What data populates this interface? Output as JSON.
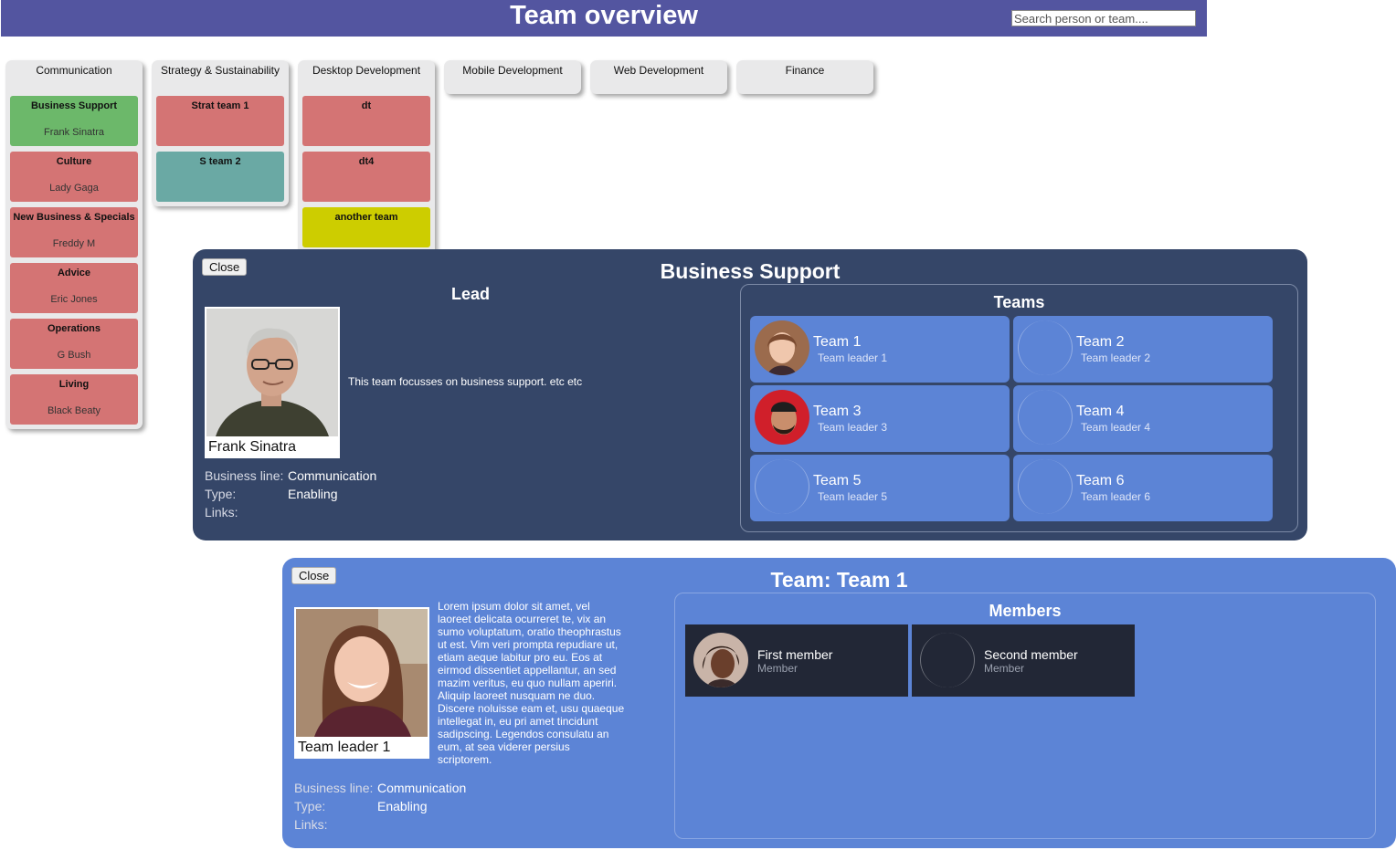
{
  "header": {
    "title": "Team overview",
    "search_placeholder": "Search person or team...."
  },
  "business_lines": [
    {
      "name": "Communication",
      "teams": [
        {
          "name": "Business Support",
          "lead": "Frank Sinatra",
          "color": "#6cb86a"
        },
        {
          "name": "Culture",
          "lead": "Lady Gaga",
          "color": "#d47474"
        },
        {
          "name": "New Business & Specials",
          "lead": "Freddy M",
          "color": "#d47474"
        },
        {
          "name": "Advice",
          "lead": "Eric Jones",
          "color": "#d47474"
        },
        {
          "name": "Operations",
          "lead": "G Bush",
          "color": "#d47474"
        },
        {
          "name": "Living",
          "lead": "Black Beaty",
          "color": "#d47474"
        }
      ]
    },
    {
      "name": "Strategy & Sustainability",
      "teams": [
        {
          "name": "Strat team 1",
          "lead": "",
          "color": "#d47474"
        },
        {
          "name": "S team 2",
          "lead": "",
          "color": "#6aa9a4"
        }
      ]
    },
    {
      "name": "Desktop Development",
      "teams": [
        {
          "name": "dt",
          "lead": "",
          "color": "#d47474"
        },
        {
          "name": "dt4",
          "lead": "",
          "color": "#d47474"
        },
        {
          "name": "another team",
          "lead": "",
          "color": "#cdcd00"
        }
      ]
    },
    {
      "name": "Mobile Development",
      "teams": []
    },
    {
      "name": "Web Development",
      "teams": []
    },
    {
      "name": "Finance",
      "teams": []
    }
  ],
  "business_support_modal": {
    "close_label": "Close",
    "title": "Business Support",
    "lead_heading": "Lead",
    "lead_name": "Frank Sinatra",
    "description": "This team focusses on business support. etc etc",
    "info": {
      "business_line_label": "Business line:",
      "business_line_value": "Communication",
      "type_label": "Type:",
      "type_value": "Enabling",
      "links_label": "Links:"
    },
    "teams_heading": "Teams",
    "teams": [
      {
        "name": "Team 1",
        "leader": "Team leader 1",
        "has_photo": true
      },
      {
        "name": "Team 2",
        "leader": "Team leader 2",
        "has_photo": false
      },
      {
        "name": "Team 3",
        "leader": "Team leader 3",
        "has_photo": true
      },
      {
        "name": "Team 4",
        "leader": "Team leader 4",
        "has_photo": false
      },
      {
        "name": "Team 5",
        "leader": "Team leader 5",
        "has_photo": false
      },
      {
        "name": "Team 6",
        "leader": "Team leader 6",
        "has_photo": false
      }
    ]
  },
  "team_modal": {
    "close_label": "Close",
    "title": "Team: Team 1",
    "leader_name": "Team leader 1",
    "description": "Lorem ipsum dolor sit amet, vel laoreet delicata ocurreret te, vix an sumo voluptatum, oratio theophrastus ut est. Vim veri prompta repudiare ut, etiam aeque labitur pro eu. Eos at eirmod dissentiet appellantur, an sed mazim veritus, eu quo nullam aperiri. Aliquip laoreet nusquam ne duo. Discere noluisse eam et, usu quaeque intellegat in, eu pri amet tincidunt sadipscing. Legendos consulatu an eum, at sea viderer persius scriptorem.",
    "info": {
      "business_line_label": "Business line:",
      "business_line_value": "Communication",
      "type_label": "Type:",
      "type_value": "Enabling",
      "links_label": "Links:"
    },
    "members_heading": "Members",
    "members": [
      {
        "name": "First member",
        "role": "Member",
        "has_photo": true
      },
      {
        "name": "Second member",
        "role": "Member",
        "has_photo": false
      }
    ]
  }
}
